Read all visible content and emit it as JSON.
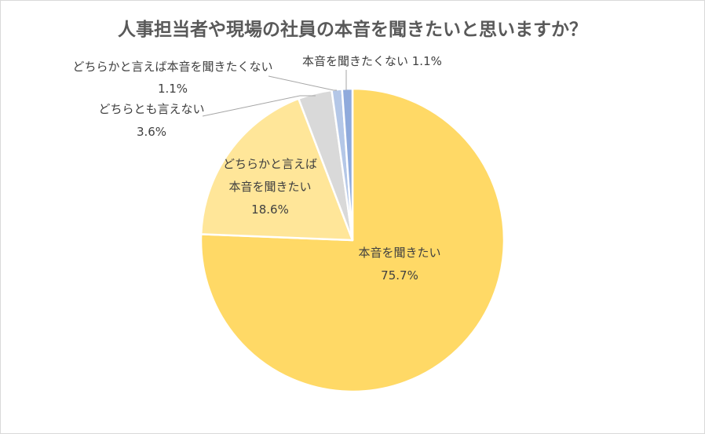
{
  "chart_data": {
    "type": "pie",
    "title": "人事担当者や現場の社員の本音を聞きたいと思いますか？",
    "slices": [
      {
        "label_lines": [
          "本音を聞きたい"
        ],
        "value_text": "75.7%",
        "value": 75.7,
        "color": "#FFD966"
      },
      {
        "label_lines": [
          "どちらかと言えば",
          "本音を聞きたい"
        ],
        "value_text": "18.6%",
        "value": 18.6,
        "color": "#FFE699"
      },
      {
        "label_lines": [
          "どちらとも言えない"
        ],
        "value_text": "3.6%",
        "value": 3.6,
        "color": "#D9D9D9"
      },
      {
        "label_lines": [
          "どちらかと言えば本音を聞きたくない"
        ],
        "value_text": "1.1%",
        "value": 1.1,
        "color": "#B4C7E7"
      },
      {
        "label_lines": [
          "本音を聞きたくない"
        ],
        "value_text": "1.1%",
        "value": 1.1,
        "color": "#8FAADC"
      }
    ],
    "legend": "none",
    "label_color": "#404040",
    "leader_line_color": "#A6A6A6"
  }
}
